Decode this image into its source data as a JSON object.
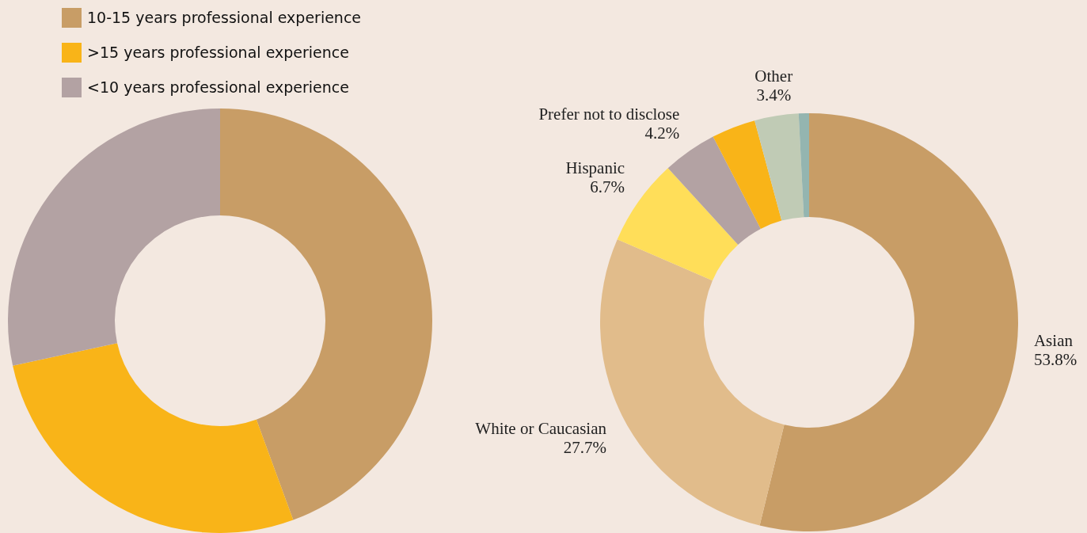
{
  "chart_data": [
    {
      "type": "donut",
      "categories": [
        "10-15 years professional experience",
        ">15 years professional experience",
        "<10 years professional experience"
      ],
      "values": [
        44.4,
        27.2,
        28.4
      ],
      "colors": [
        "#c89d66",
        "#f9b418",
        "#b3a2a3"
      ],
      "legend": "top left"
    },
    {
      "type": "donut",
      "categories": [
        "Asian",
        "White or Caucasian",
        "Hispanic",
        "Prefer not to disclose",
        null,
        "Other",
        null
      ],
      "values": [
        53.8,
        27.7,
        6.7,
        4.2,
        3.4,
        3.4,
        0.8
      ],
      "colors": [
        "#c89d66",
        "#e1bc8b",
        "#ffde59",
        "#b3a2a3",
        "#f9b418",
        "#c0cbb5",
        "#94b5b0"
      ],
      "value_labels": [
        "53.8%",
        "27.7%",
        "6.7%",
        "4.2%",
        null,
        "3.4%",
        null
      ],
      "legend": false
    }
  ]
}
